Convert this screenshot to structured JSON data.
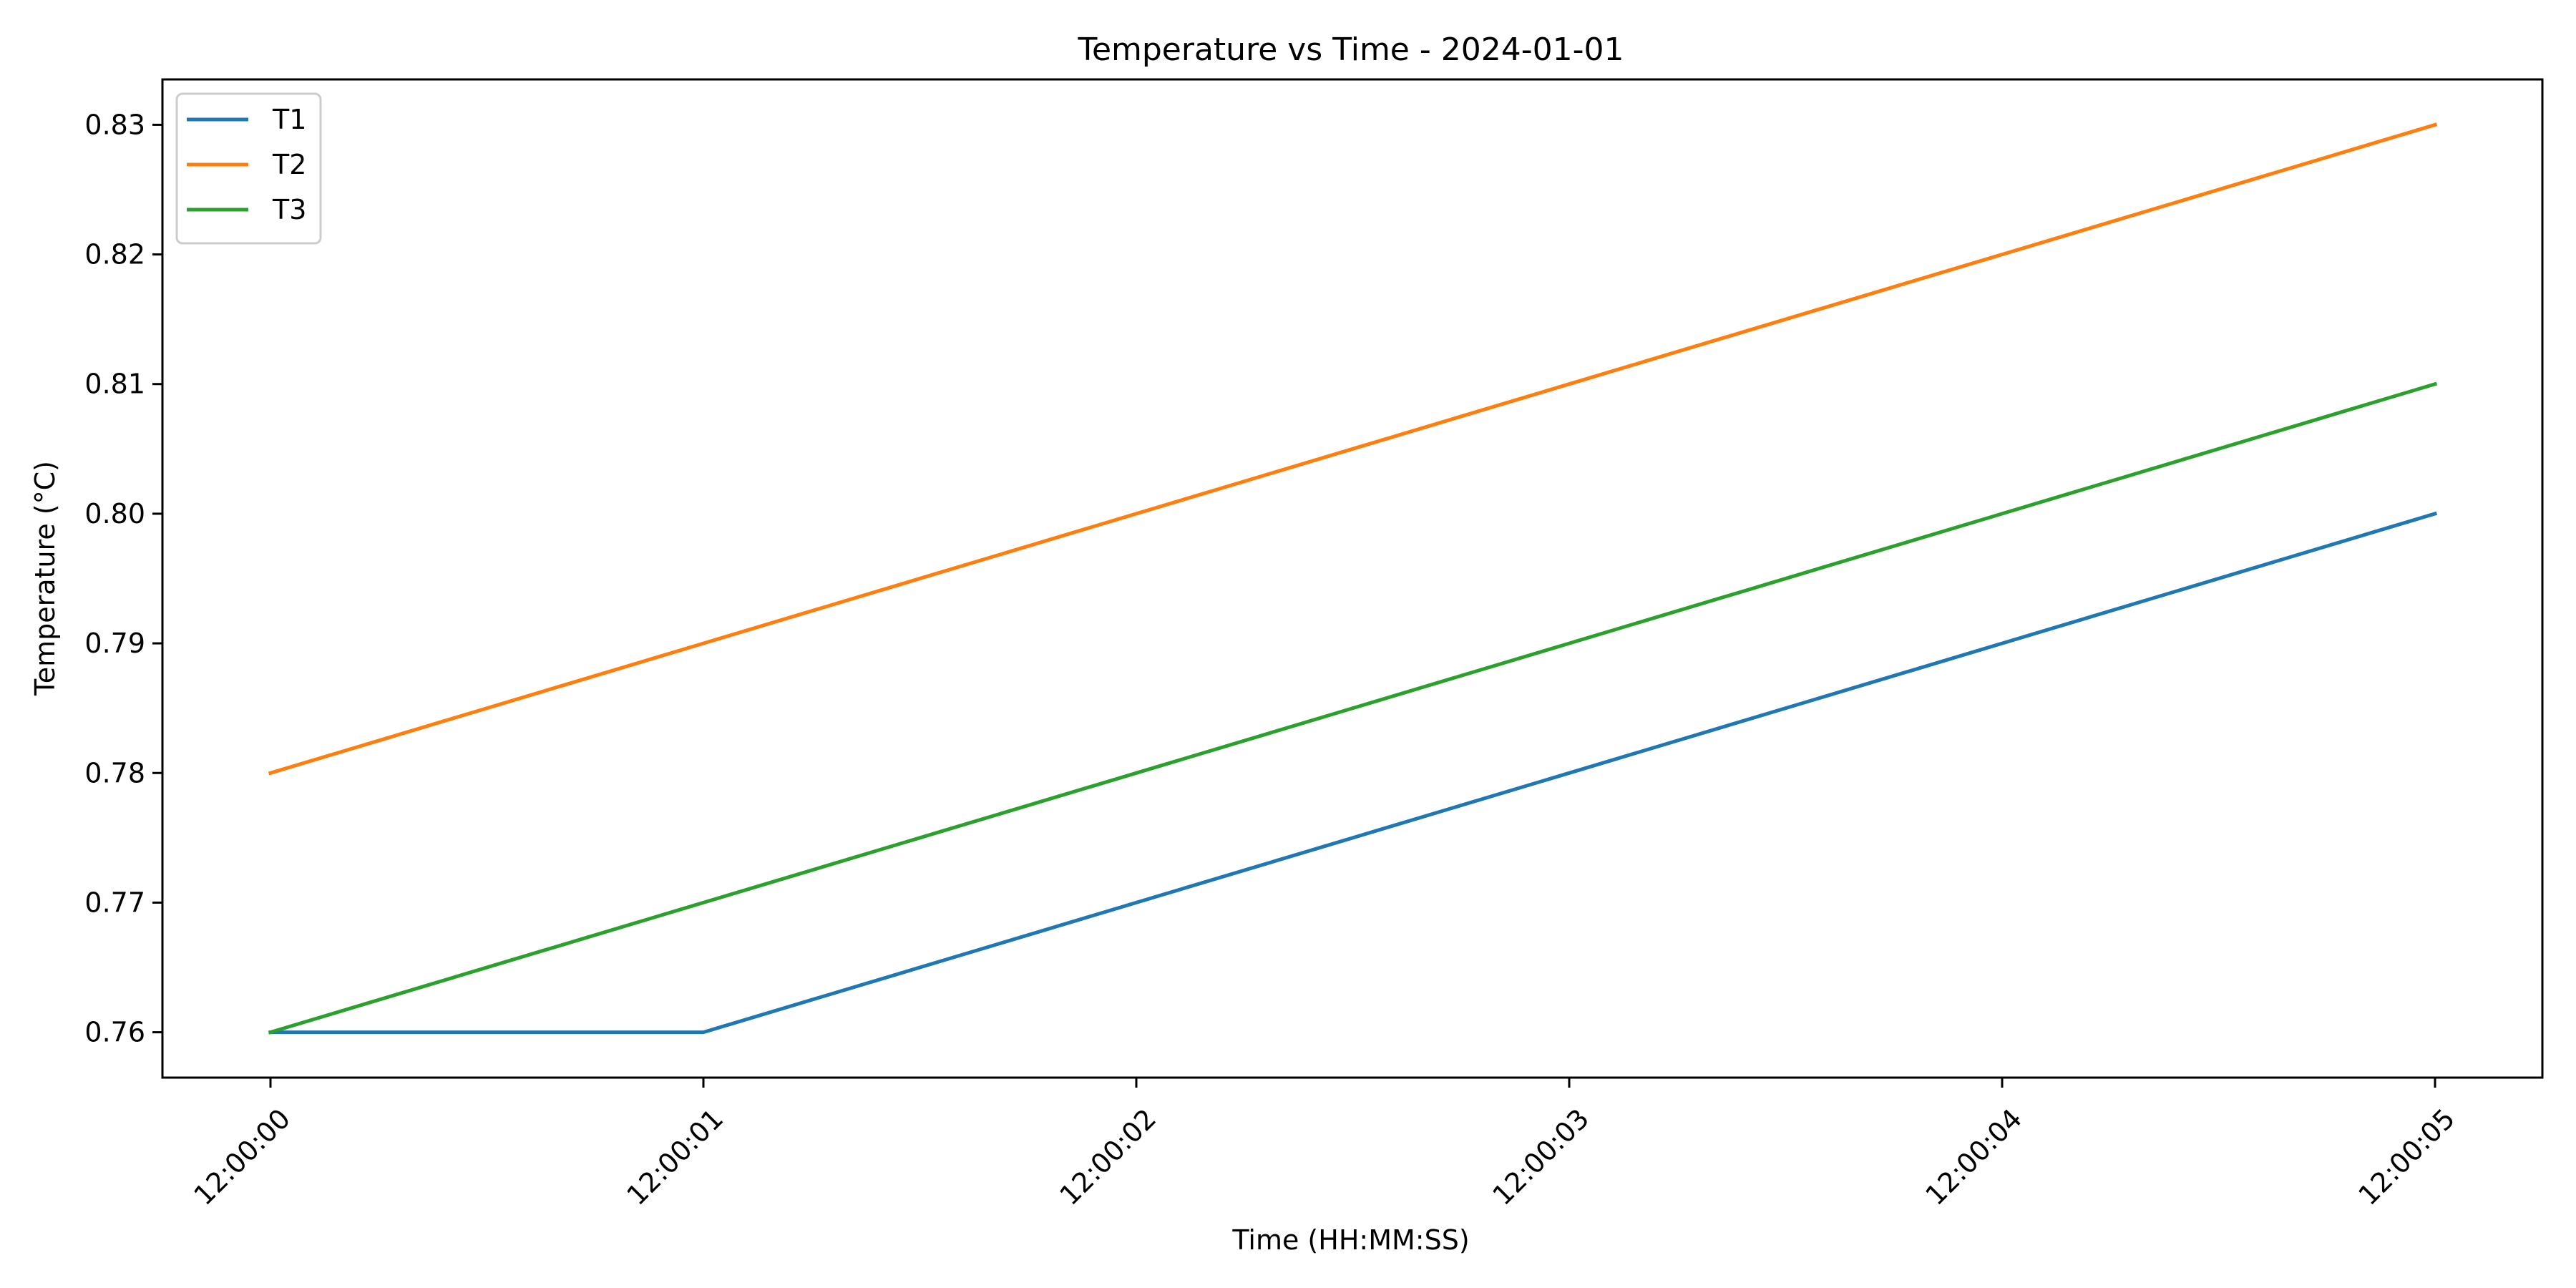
{
  "chart_data": {
    "type": "line",
    "title": "Temperature vs Time - 2024-01-01",
    "xlabel": "Time (HH:MM:SS)",
    "ylabel": "Temperature (°C)",
    "categories": [
      "12:00:00",
      "12:00:01",
      "12:00:02",
      "12:00:03",
      "12:00:04",
      "12:00:05"
    ],
    "yticks": [
      "0.76",
      "0.77",
      "0.78",
      "0.79",
      "0.80",
      "0.81",
      "0.82",
      "0.83"
    ],
    "ylim": [
      0.7565,
      0.8335
    ],
    "grid": false,
    "legend": "upper-left",
    "series": [
      {
        "name": "T1",
        "color": "#1f77b4",
        "values": [
          0.76,
          0.76,
          0.77,
          0.78,
          0.79,
          0.8
        ]
      },
      {
        "name": "T2",
        "color": "#ff7f0e",
        "values": [
          0.78,
          0.79,
          0.8,
          0.81,
          0.82,
          0.83
        ]
      },
      {
        "name": "T3",
        "color": "#2ca02c",
        "values": [
          0.76,
          0.77,
          0.78,
          0.79,
          0.8,
          0.81
        ]
      }
    ]
  }
}
